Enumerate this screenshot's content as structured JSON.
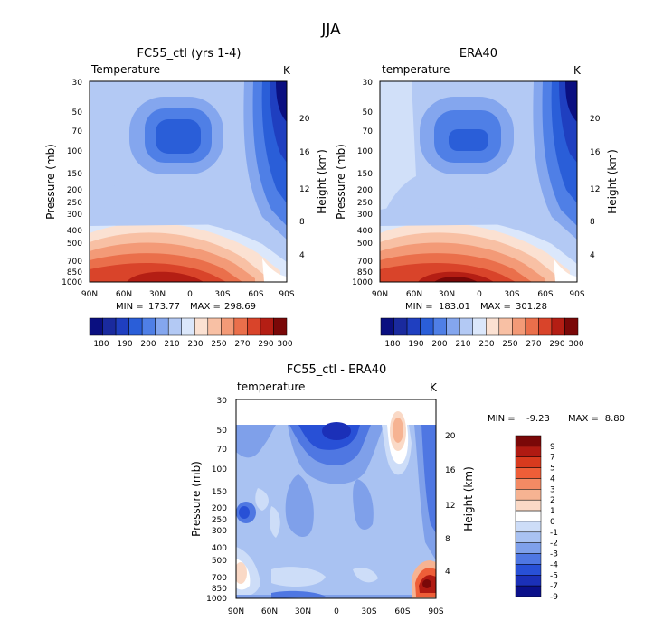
{
  "page_title": "JJA",
  "chart_data": [
    {
      "type": "heatmap",
      "id": "p1",
      "title": "FC55_ctl (yrs 1-4)",
      "variable": "temperature_label_left",
      "variable_label": "Temperature",
      "units": "K",
      "xlabel": "",
      "ylabel": "Pressure (mb)",
      "y2label": "Height (km)",
      "x_ticks": [
        "90N",
        "60N",
        "30N",
        "0",
        "30S",
        "60S",
        "90S"
      ],
      "y_ticks": [
        "30",
        "50",
        "70",
        "100",
        "150",
        "200",
        "250",
        "300",
        "400",
        "500",
        "700",
        "850",
        "1000"
      ],
      "y2_ticks": [
        "4",
        "8",
        "12",
        "16",
        "20"
      ],
      "stats": {
        "min_label": "MIN =",
        "min": "173.77",
        "max_label": "MAX =",
        "max": "298.69"
      },
      "colorbar_labels": [
        "180",
        "190",
        "200",
        "210",
        "230",
        "250",
        "270",
        "290",
        "300"
      ]
    },
    {
      "type": "heatmap",
      "id": "p2",
      "title": "ERA40",
      "variable_label": "temperature",
      "units": "K",
      "xlabel": "",
      "ylabel": "Pressure (mb)",
      "y2label": "Height (km)",
      "x_ticks": [
        "90N",
        "60N",
        "30N",
        "0",
        "30S",
        "60S",
        "90S"
      ],
      "y_ticks": [
        "30",
        "50",
        "70",
        "100",
        "150",
        "200",
        "250",
        "300",
        "400",
        "500",
        "700",
        "850",
        "1000"
      ],
      "y2_ticks": [
        "4",
        "8",
        "12",
        "16",
        "20"
      ],
      "stats": {
        "min_label": "MIN =",
        "min": "183.01",
        "max_label": "MAX =",
        "max": "301.28"
      },
      "colorbar_labels": [
        "180",
        "190",
        "200",
        "210",
        "230",
        "250",
        "270",
        "290",
        "300"
      ]
    },
    {
      "type": "heatmap",
      "id": "p3",
      "title": "FC55_ctl - ERA40",
      "variable_label": "temperature",
      "units": "K",
      "xlabel": "",
      "ylabel": "Pressure (mb)",
      "y2label": "Height (km)",
      "x_ticks": [
        "90N",
        "60N",
        "30N",
        "0",
        "30S",
        "60S",
        "90S"
      ],
      "y_ticks": [
        "30",
        "50",
        "70",
        "100",
        "150",
        "200",
        "250",
        "300",
        "400",
        "500",
        "700",
        "850",
        "1000"
      ],
      "y2_ticks": [
        "4",
        "8",
        "12",
        "16",
        "20"
      ],
      "stats": {
        "min_label": "MIN =",
        "min": "-9.23",
        "max_label": "MAX =",
        "max": "8.80"
      },
      "colorbar_labels": [
        "9",
        "7",
        "5",
        "4",
        "3",
        "2",
        "1",
        "0",
        "-1",
        "-2",
        "-3",
        "-4",
        "-5",
        "-7",
        "-9"
      ]
    }
  ],
  "colors": {
    "temp_scale": [
      "#0a0f80",
      "#1a2a9e",
      "#1f3fc0",
      "#2a5ed8",
      "#4f7fe6",
      "#84a6ee",
      "#b3c9f4",
      "#dbe7fb",
      "#fbe1d2",
      "#f8c0a4",
      "#f39a77",
      "#ea6f4b",
      "#d9442a",
      "#b41e14",
      "#7a0808"
    ],
    "diff_scale": [
      "#7a0808",
      "#b01a12",
      "#d83a1e",
      "#ee5e38",
      "#f38a64",
      "#f6b392",
      "#fad9c6",
      "#ffffff",
      "#cdddf8",
      "#a9c2f2",
      "#7fa0ea",
      "#4f77e2",
      "#2850d6",
      "#1b30b8",
      "#0b108a"
    ]
  }
}
